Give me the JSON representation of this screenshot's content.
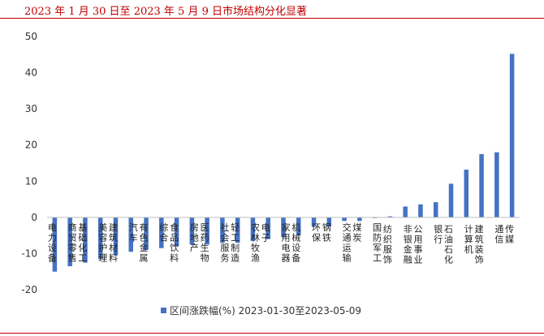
{
  "header": {
    "title": "2023 年 1 月 30 日至 2023 年 5 月 9 日市场结构分化显著"
  },
  "chart_data": {
    "type": "bar",
    "categories": [
      "电力设备",
      "商贸零售",
      "基础化工",
      "美容护理",
      "建筑材料",
      "汽车",
      "有色金属",
      "综合",
      "食品饮料",
      "房地产",
      "医药生物",
      "社会服务",
      "轻工制造",
      "农林牧渔",
      "电子",
      "家用电器",
      "机械设备",
      "环保",
      "钢铁",
      "交通运输",
      "煤炭",
      "国防军工",
      "纺织服饰",
      "非银金融",
      "公用事业",
      "银行",
      "石油石化",
      "计算机",
      "建筑装饰",
      "通信",
      "传媒"
    ],
    "series": [
      {
        "name": "区间涨跌幅(%) 2023-01-30至2023-05-09",
        "values": [
          -15,
          -13.5,
          -12.5,
          -11.5,
          -10.5,
          -9.5,
          -9,
          -8.5,
          -8,
          -7.5,
          -7.5,
          -7,
          -7,
          -6.5,
          -6,
          -5.5,
          -5,
          -2.5,
          -2.5,
          -1,
          -1,
          -0.2,
          0.3,
          3,
          3.6,
          4.2,
          9.3,
          13.2,
          17.5,
          18,
          45.2
        ],
        "color": "#4472c4"
      }
    ],
    "ylim": [
      -20,
      50
    ],
    "yticks": [
      -20,
      -10,
      0,
      10,
      20,
      30,
      40,
      50
    ],
    "grid": false,
    "legend_position": "bottom"
  }
}
